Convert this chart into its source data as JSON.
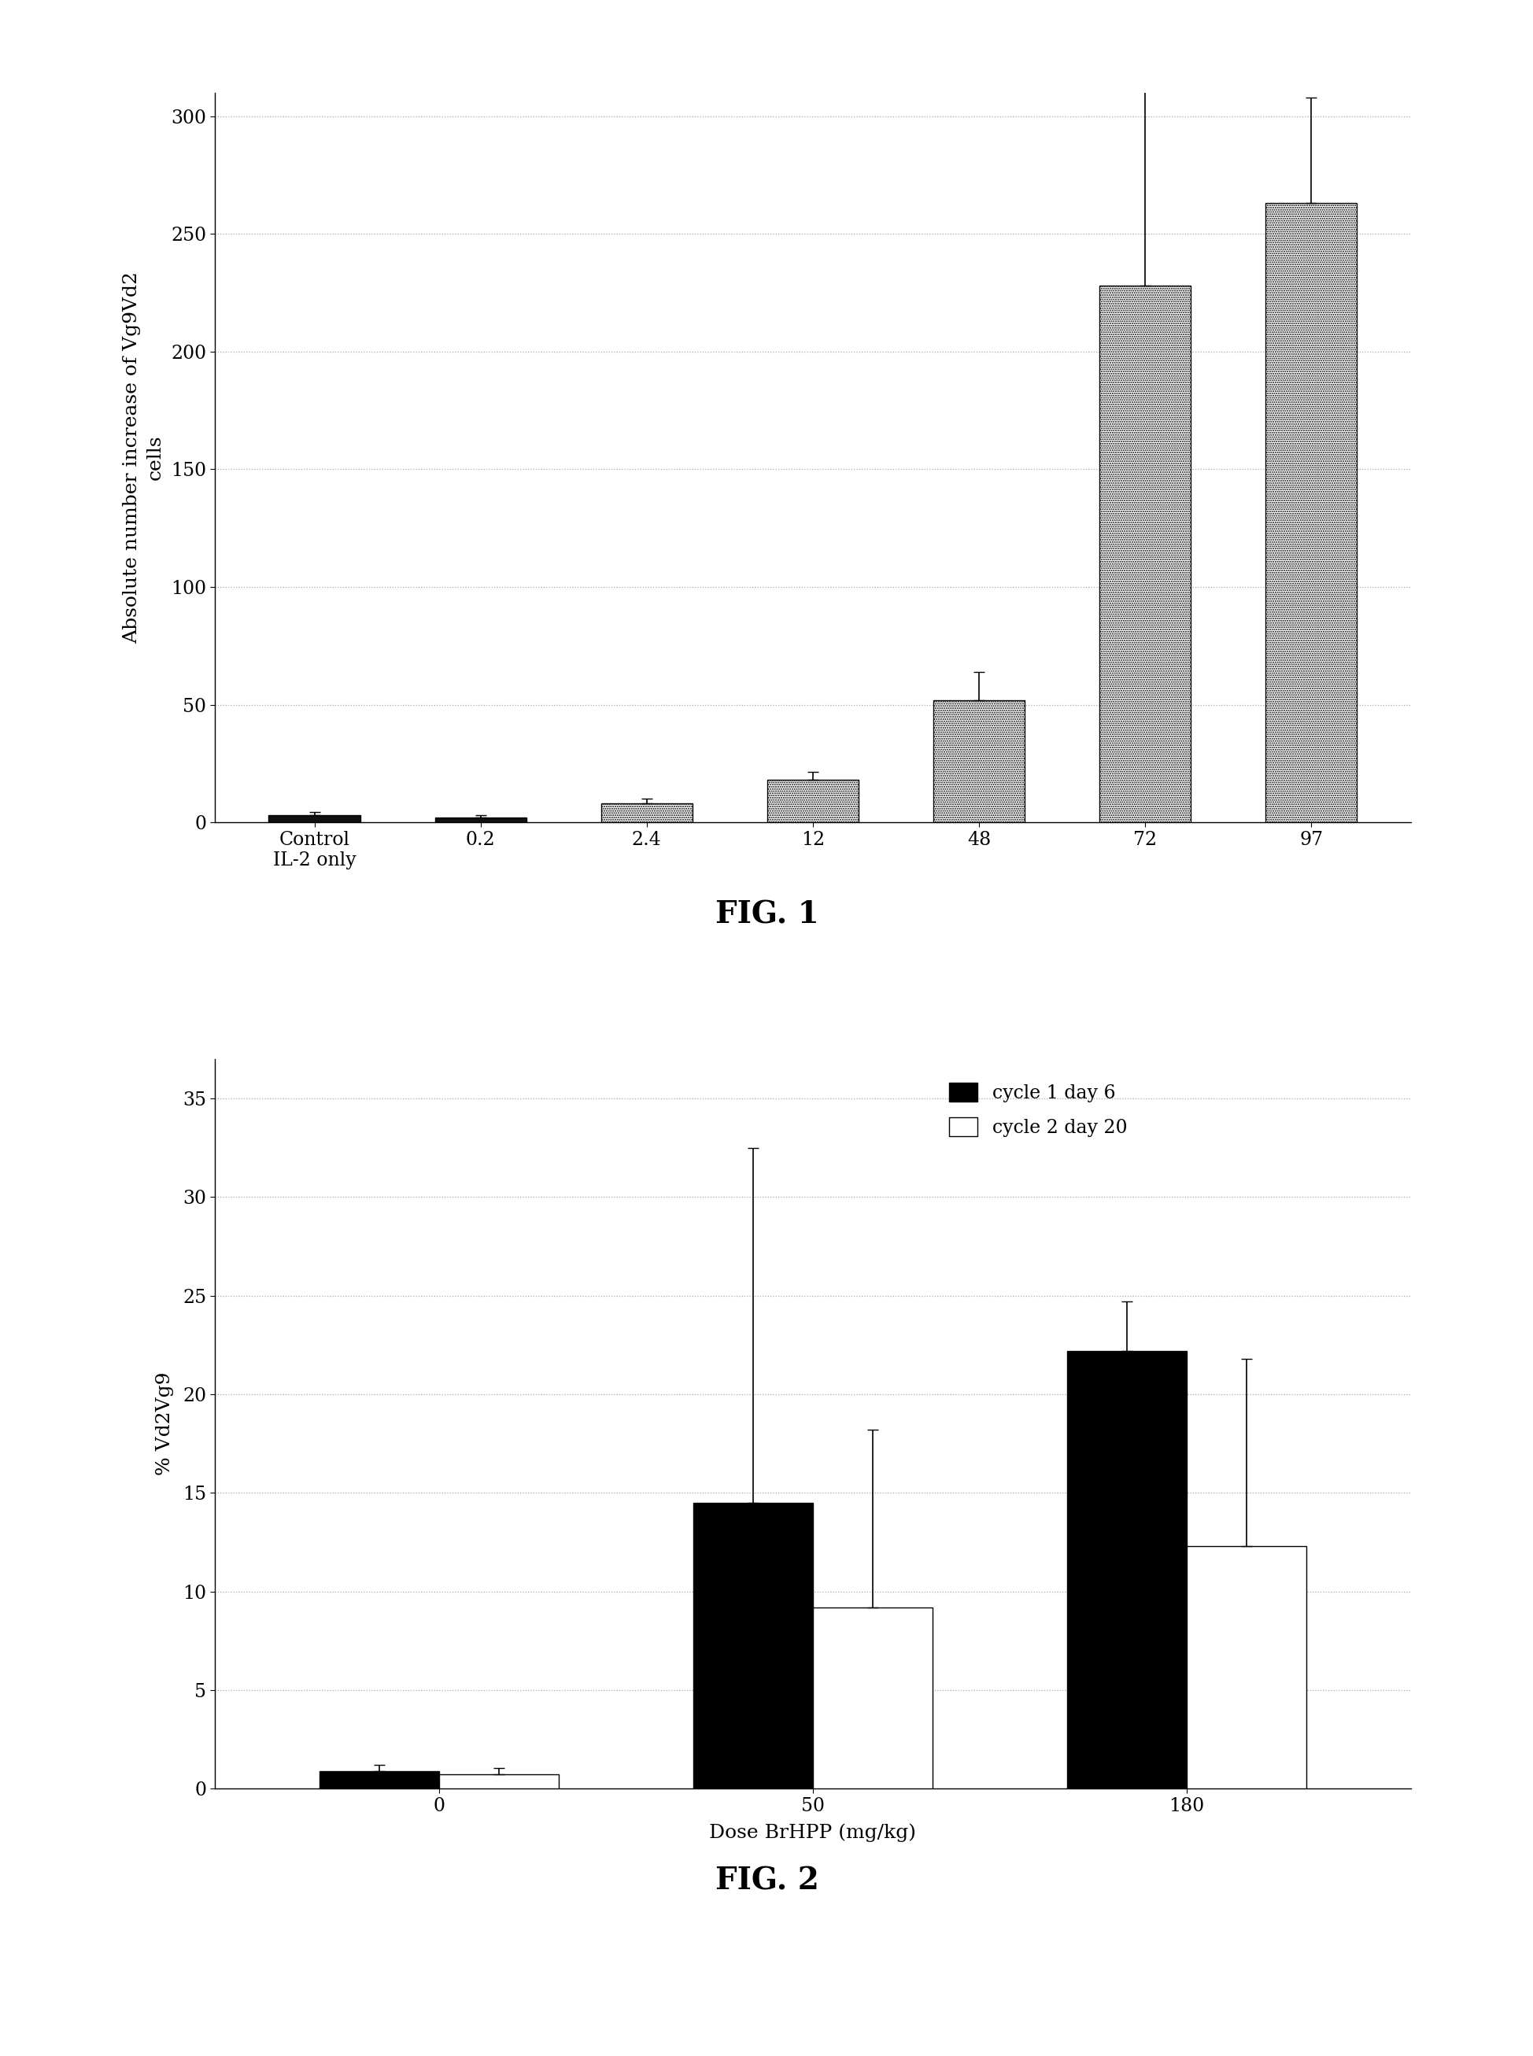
{
  "fig1": {
    "categories": [
      "Control\nIL-2 only",
      "0.2",
      "2.4",
      "12",
      "48",
      "72",
      "97"
    ],
    "values": [
      3.0,
      2.0,
      8.0,
      18.0,
      52.0,
      228.0,
      263.0
    ],
    "errors": [
      1.5,
      1.0,
      2.0,
      3.5,
      12.0,
      90.0,
      45.0
    ],
    "ylabel": "Absolute number increase of Vg9Vd2\ncells",
    "yticks": [
      0,
      50,
      100,
      150,
      200,
      250,
      300
    ],
    "ylim": [
      0,
      310
    ],
    "figname": "FIG. 1",
    "bar_styles": [
      "solid_dark",
      "solid_dark",
      "dotted",
      "dotted",
      "dotted",
      "dotted",
      "dotted"
    ]
  },
  "fig2": {
    "group_labels": [
      "0",
      "50",
      "180"
    ],
    "values_black": [
      0.9,
      14.5,
      22.2
    ],
    "values_white": [
      0.75,
      9.2,
      12.3
    ],
    "errors_black": [
      0.3,
      18.0,
      2.5
    ],
    "errors_white": [
      0.3,
      9.0,
      9.5
    ],
    "xlabel": "Dose BrHPP (mg/kg)",
    "ylabel": "% Vd2Vg9",
    "yticks": [
      0,
      5,
      10,
      15,
      20,
      25,
      30,
      35
    ],
    "ylim": [
      0,
      37
    ],
    "figname": "FIG. 2",
    "legend_black": "cycle 1 day 6",
    "legend_white": "cycle 2 day 20"
  },
  "background_color": "#ffffff",
  "grid_color": "#aaaaaa",
  "label_fontsize": 18,
  "tick_fontsize": 17,
  "figname_fontsize": 28
}
